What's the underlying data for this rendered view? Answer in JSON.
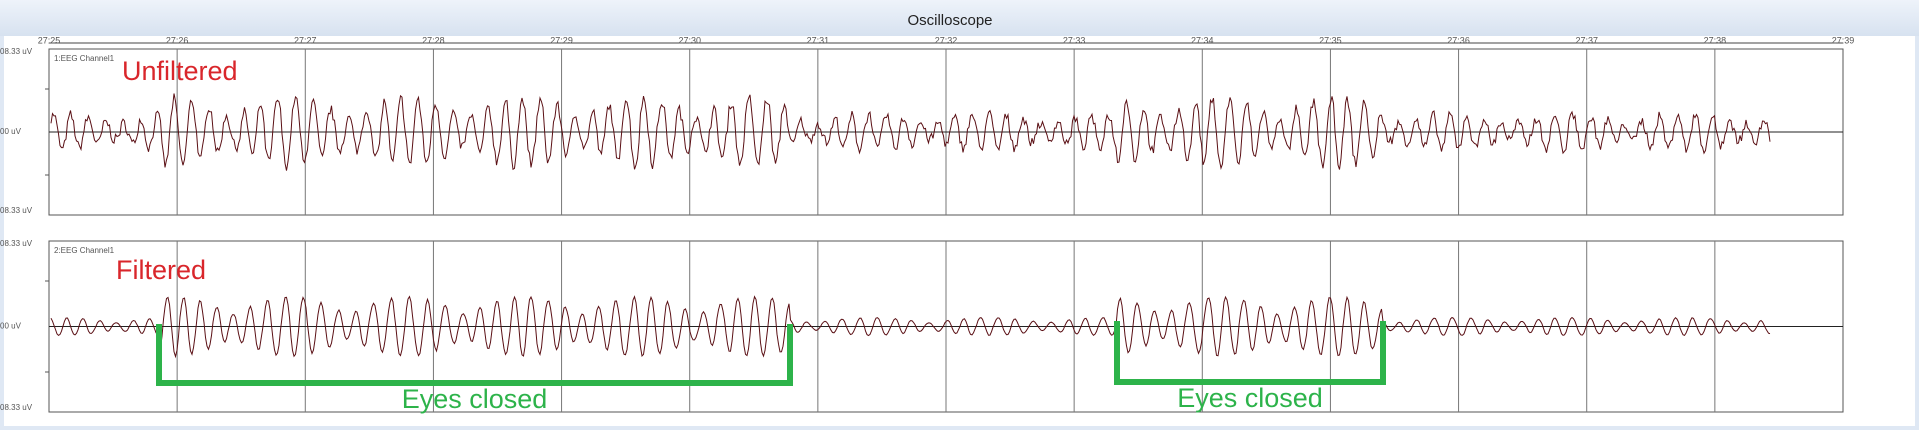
{
  "window": {
    "title": "Oscilloscope"
  },
  "time_axis": [
    "27:25",
    "27:26",
    "27:27",
    "27:28",
    "27:29",
    "27:30",
    "27:31",
    "27:32",
    "27:33",
    "27:34",
    "27:35",
    "27:36",
    "27:37",
    "27:38",
    "27:39"
  ],
  "plots": [
    {
      "channel": "1:EEG Channel1",
      "label": "Unfiltered",
      "y_labels": [
        "08.33 uV",
        "00 uV",
        "08.33 uV"
      ]
    },
    {
      "channel": "2:EEG Channel1",
      "label": "Filtered",
      "y_labels": [
        "08.33 uV",
        "00 uV",
        "08.33 uV"
      ]
    }
  ],
  "annotations": [
    "Eyes closed",
    "Eyes closed"
  ]
}
